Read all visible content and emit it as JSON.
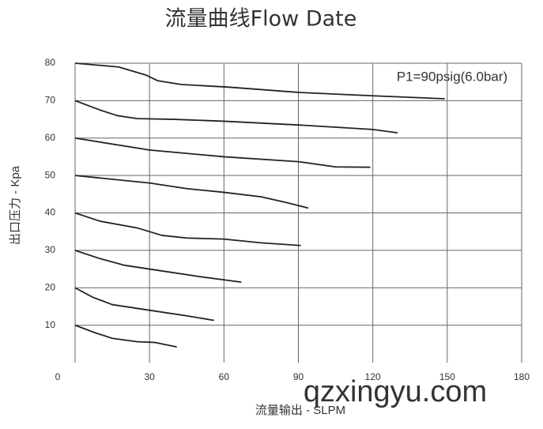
{
  "chart_data": {
    "type": "line",
    "title": "流量曲线Flow Date",
    "annotation": "P1=90psig(6.0bar)",
    "x_label": "流量输出 - SLPM",
    "y_label": "出口压力 - Kpa",
    "watermark": "qzxingyu.com",
    "xlim": [
      0,
      180
    ],
    "xticks": [
      0,
      30,
      60,
      90,
      120,
      150,
      180
    ],
    "ylim": [
      0,
      80
    ],
    "yticks": [
      10,
      20,
      30,
      40,
      50,
      60,
      70,
      80
    ],
    "grid": true,
    "series": [
      {
        "color": "#222222",
        "x": [
          0,
          17.5,
          28.7,
          33.4,
          43,
          62,
          90,
          120,
          149
        ],
        "values": [
          80,
          79,
          76.8,
          75.3,
          74.3,
          73.6,
          72.2,
          71.3,
          70.5
        ]
      },
      {
        "color": "#222222",
        "x": [
          0,
          10,
          17,
          25,
          40,
          60,
          90,
          120,
          130
        ],
        "values": [
          70,
          67.5,
          66,
          65.2,
          65,
          64.5,
          63.5,
          62.3,
          61.4
        ]
      },
      {
        "color": "#222222",
        "x": [
          0,
          30,
          60,
          90,
          105,
          119
        ],
        "values": [
          60,
          56.8,
          55,
          53.7,
          52.3,
          52.2
        ]
      },
      {
        "color": "#222222",
        "x": [
          0,
          30,
          45,
          60,
          75,
          85,
          94
        ],
        "values": [
          50,
          48,
          46.5,
          45.5,
          44.3,
          42.8,
          41.3
        ]
      },
      {
        "color": "#222222",
        "x": [
          0,
          10,
          25,
          35,
          45,
          60,
          75,
          91
        ],
        "values": [
          40,
          37.8,
          36,
          34,
          33.3,
          33,
          32,
          31.3
        ]
      },
      {
        "color": "#222222",
        "x": [
          0,
          10,
          20,
          35,
          50,
          67
        ],
        "values": [
          30,
          27.8,
          26,
          24.5,
          23,
          21.5
        ]
      },
      {
        "color": "#222222",
        "x": [
          0,
          7,
          15,
          30,
          45,
          56
        ],
        "values": [
          20,
          17.5,
          15.5,
          14,
          12.5,
          11.3
        ]
      },
      {
        "color": "#222222",
        "x": [
          0,
          8,
          15,
          25,
          32,
          41
        ],
        "values": [
          10,
          8,
          6.5,
          5.6,
          5.4,
          4.2
        ]
      }
    ]
  }
}
